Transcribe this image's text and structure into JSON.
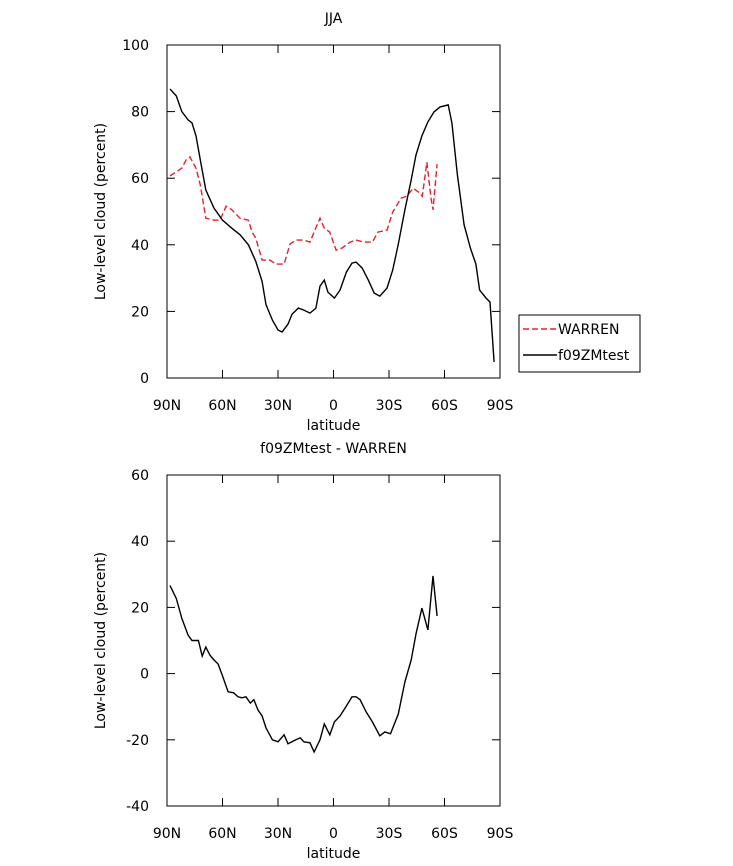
{
  "chart_data": [
    {
      "type": "line",
      "title": "JJA",
      "x_label": "latitude",
      "y_label": "Low-level cloud (percent)",
      "xlim": [
        90,
        -90
      ],
      "ylim": [
        0,
        100
      ],
      "xticks": [
        {
          "value": 90,
          "label": "90N"
        },
        {
          "value": 60,
          "label": "60N"
        },
        {
          "value": 30,
          "label": "30N"
        },
        0,
        {
          "value": -30,
          "label": "30S"
        },
        {
          "value": -60,
          "label": "60S"
        },
        {
          "value": -90,
          "label": "90S"
        }
      ],
      "yticks": [
        0,
        20,
        40,
        60,
        80,
        100
      ],
      "legend": "right",
      "series": [
        {
          "name": "WARREN",
          "color": "#e8202a",
          "linestyle": "dashed",
          "x": [
            88.4,
            85,
            82,
            79.7,
            77.6,
            74.3,
            72,
            69,
            64.6,
            61.4,
            58,
            55,
            50.5,
            46,
            44,
            42,
            38.6,
            34.4,
            31,
            26.7,
            23.5,
            20.3,
            16,
            12.7,
            10.5,
            7.3,
            5,
            2,
            -1.4,
            -4.6,
            -9,
            -12.2,
            -16.5,
            -21,
            -24,
            -28.9,
            -32,
            -36.5,
            -39.7,
            -43,
            -46,
            -48,
            -50.5,
            -52.7,
            -53.8,
            -56
          ],
          "values": [
            60.7,
            61.9,
            63,
            65.5,
            66.4,
            63,
            58,
            48,
            47.4,
            47.4,
            51.6,
            50.5,
            48,
            47.4,
            43.8,
            42,
            35.4,
            35.4,
            34.2,
            34.2,
            40.2,
            41.4,
            41.4,
            40.8,
            43.8,
            48,
            45,
            43.8,
            38.4,
            39,
            40.8,
            41.4,
            40.8,
            40.8,
            43.8,
            44.4,
            49.8,
            54,
            54.6,
            57,
            55.8,
            54.6,
            64.8,
            54,
            50.5,
            64.2
          ]
        },
        {
          "name": "f09ZMtest",
          "color": "#000000",
          "linestyle": "solid",
          "x": [
            88.4,
            85,
            82,
            78.6,
            76.5,
            74.3,
            72,
            69,
            64.6,
            60,
            55,
            50.5,
            46,
            42,
            38.6,
            36.5,
            33,
            30,
            27.8,
            24.6,
            22.4,
            19,
            16,
            12.7,
            9.5,
            7.3,
            5,
            3,
            -0.5,
            -3.5,
            -7,
            -10,
            -12.2,
            -15.5,
            -18.8,
            -22,
            -25,
            -28.9,
            -32,
            -35,
            -38.6,
            -42,
            -44.6,
            -47.8,
            -51,
            -54.3,
            -57.6,
            -62,
            -64,
            -67,
            -70.6,
            -74,
            -77,
            -79,
            -82.5,
            -84.6,
            -86.8
          ],
          "values": [
            86.8,
            84.7,
            80,
            77.5,
            76.6,
            72.7,
            65.5,
            56.5,
            51,
            47.4,
            45,
            43,
            40,
            35,
            29,
            22,
            17.4,
            14.4,
            13.8,
            16.2,
            19.2,
            21,
            20.4,
            19.5,
            21,
            27.6,
            29.4,
            25.8,
            24,
            26.4,
            31.8,
            34.5,
            34.8,
            33,
            29.4,
            25.5,
            24.6,
            27,
            32.4,
            40.2,
            50.5,
            59.5,
            67,
            72.7,
            76.9,
            79.9,
            81.4,
            82,
            76.6,
            61,
            46,
            39,
            34.2,
            26.4,
            24,
            22.8,
            4.8
          ]
        }
      ]
    },
    {
      "type": "line",
      "title": "f09ZMtest - WARREN",
      "x_label": "latitude",
      "y_label": "Low-level cloud (percent)",
      "xlim": [
        90,
        -90
      ],
      "ylim": [
        -40,
        60
      ],
      "xticks": [
        {
          "value": 90,
          "label": "90N"
        },
        {
          "value": 60,
          "label": "60N"
        },
        {
          "value": 30,
          "label": "30N"
        },
        0,
        {
          "value": -30,
          "label": "30S"
        },
        {
          "value": -60,
          "label": "60S"
        },
        {
          "value": -90,
          "label": "90S"
        }
      ],
      "yticks": [
        -40,
        -20,
        0,
        20,
        40,
        60
      ],
      "series": [
        {
          "color": "#000000",
          "linestyle": "solid",
          "x": [
            88.4,
            85,
            82,
            78.6,
            76.5,
            73,
            71,
            69,
            66.8,
            64.6,
            62.4,
            60,
            57,
            54,
            51.6,
            49.5,
            47.3,
            45,
            43,
            40.8,
            38.6,
            36.5,
            33,
            30,
            26.7,
            24.6,
            20.3,
            18,
            16,
            12.7,
            10.5,
            7.3,
            5,
            2,
            -0.5,
            -3.5,
            -7,
            -10,
            -12.2,
            -14.4,
            -17.7,
            -21,
            -25,
            -27.8,
            -30.8,
            -35,
            -38.6,
            -42,
            -44.6,
            -47.8,
            -51,
            -53.8,
            -56
          ],
          "values": [
            26.6,
            22.7,
            16.7,
            11.6,
            10,
            10,
            5.3,
            8,
            5.6,
            4.1,
            2.9,
            -0.7,
            -5.5,
            -5.8,
            -7,
            -7.3,
            -7,
            -8.9,
            -7.9,
            -11,
            -12.8,
            -16.4,
            -20,
            -20.6,
            -18.5,
            -21.2,
            -20,
            -19.4,
            -20.6,
            -20.9,
            -23.7,
            -20,
            -15.2,
            -18.5,
            -14.6,
            -12.8,
            -9.8,
            -7,
            -7,
            -7.9,
            -11.6,
            -14.6,
            -18.8,
            -17.6,
            -18.2,
            -12.2,
            -2.5,
            4.1,
            12,
            19.8,
            13.2,
            29.5,
            17.4
          ]
        }
      ]
    }
  ]
}
